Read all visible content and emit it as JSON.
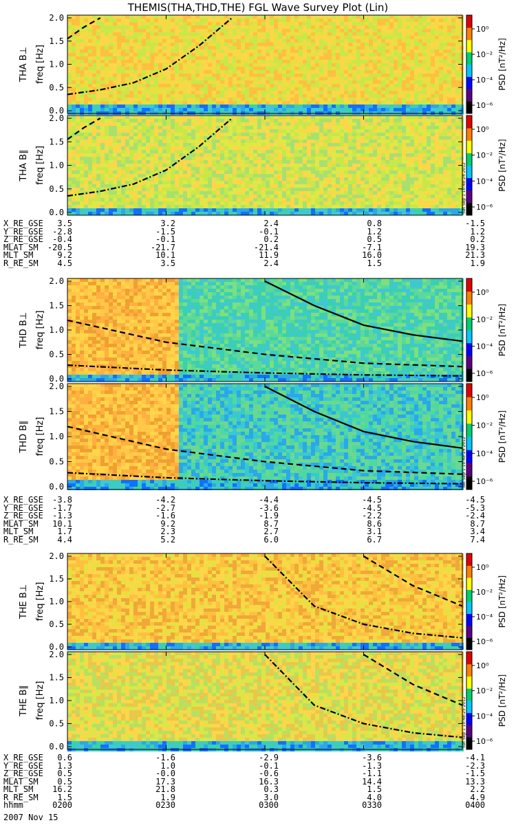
{
  "title": "THEMIS(THA,THD,THE) FGL Wave Survey Plot (Lin)",
  "colorbar": {
    "label": "PSD [nT²/Hz]",
    "tick_labels": [
      "10⁰",
      "10⁻²",
      "10⁻⁴",
      "10⁻⁶"
    ],
    "scale": "log",
    "colors": [
      "#000000",
      "#5b0080",
      "#0000ff",
      "#00c8ff",
      "#00d070",
      "#ffff00",
      "#ff8000",
      "#e00000"
    ]
  },
  "panels": [
    {
      "ylabel": "THA B⊥",
      "unit": "freq [Hz]",
      "stamp": ""
    },
    {
      "ylabel": "THA B∥",
      "unit": "freq [Hz]",
      "stamp": "Sat Sep 1 10:48:24 2012"
    },
    {
      "ylabel": "THD B⊥",
      "unit": "freq [Hz]",
      "stamp": ""
    },
    {
      "ylabel": "THD B∥",
      "unit": "freq [Hz]",
      "stamp": "Sat Sep 1 10:48:24 2012"
    },
    {
      "ylabel": "THE B⊥",
      "unit": "freq [Hz]",
      "stamp": ""
    },
    {
      "ylabel": "THE B∥",
      "unit": "freq [Hz]",
      "stamp": "Sat Sep 1 10:48:25 2012"
    }
  ],
  "chart_data": {
    "type": "heatmap",
    "x": [
      "0200",
      "0230",
      "0300",
      "0330",
      "0400"
    ],
    "ylim": [
      0,
      2.0
    ],
    "yticks": [
      "0.0",
      "0.5",
      "1.0",
      "1.5",
      "2.0"
    ],
    "zlim": [
      "1e-6",
      "1e1"
    ],
    "series": [
      {
        "name": "THA",
        "curves": [
          {
            "style": "dash-dot",
            "x": [
              "0200",
              "0210",
              "0220",
              "0230",
              "0240",
              "0250"
            ],
            "y": [
              0.35,
              0.45,
              0.6,
              0.9,
              1.4,
              2.0
            ]
          },
          {
            "style": "dashed",
            "x": [
              "0200",
              "0205",
              "0210"
            ],
            "y": [
              1.55,
              1.8,
              2.0
            ]
          }
        ]
      },
      {
        "name": "THD",
        "curves": [
          {
            "style": "solid",
            "x": [
              "0300",
              "0315",
              "0330",
              "0345",
              "0400"
            ],
            "y": [
              2.0,
              1.5,
              1.1,
              0.9,
              0.77
            ]
          },
          {
            "style": "dashed",
            "x": [
              "0200",
              "0230",
              "0300",
              "0330",
              "0400"
            ],
            "y": [
              1.2,
              0.75,
              0.5,
              0.32,
              0.25
            ]
          },
          {
            "style": "dash-dot",
            "x": [
              "0200",
              "0230",
              "0300",
              "0330",
              "0400"
            ],
            "y": [
              0.28,
              0.18,
              0.12,
              0.08,
              0.06
            ]
          }
        ]
      },
      {
        "name": "THE",
        "curves": [
          {
            "style": "dash-dot",
            "x": [
              "0300",
              "0315",
              "0330",
              "0345",
              "0400"
            ],
            "y": [
              2.0,
              0.9,
              0.5,
              0.3,
              0.2
            ]
          },
          {
            "style": "dashed",
            "x": [
              "0330",
              "0345",
              "0400"
            ],
            "y": [
              2.0,
              1.35,
              0.9
            ]
          }
        ]
      }
    ]
  },
  "ephemeris": [
    {
      "rows": [
        {
          "label": "X_RE_GSE",
          "values": [
            "3.5",
            "3.2",
            "2.4",
            "0.8",
            "-1.5"
          ]
        },
        {
          "label": "Y_RE_GSE",
          "values": [
            "-2.8",
            "-1.5",
            "-0.1",
            "1.2",
            "1.2"
          ]
        },
        {
          "label": "Z_RE_GSE",
          "values": [
            "-0.4",
            "-0.1",
            "0.2",
            "0.5",
            "0.2"
          ]
        },
        {
          "label": "MLAT_SM",
          "values": [
            "-20.5",
            "-21.7",
            "-21.4",
            "-7.1",
            "19.3"
          ]
        },
        {
          "label": "MLT_SM",
          "values": [
            "9.2",
            "10.1",
            "11.9",
            "16.0",
            "21.3"
          ]
        },
        {
          "label": "R_RE_SM",
          "values": [
            "4.5",
            "3.5",
            "2.4",
            "1.5",
            "1.9"
          ]
        }
      ]
    },
    {
      "rows": [
        {
          "label": "X_RE_GSE",
          "values": [
            "-3.8",
            "-4.2",
            "-4.4",
            "-4.5",
            "-4.5"
          ]
        },
        {
          "label": "Y_RE_GSE",
          "values": [
            "-1.7",
            "-2.7",
            "-3.6",
            "-4.5",
            "-5.3"
          ]
        },
        {
          "label": "Z_RE_GSE",
          "values": [
            "-1.3",
            "-1.6",
            "-1.9",
            "-2.2",
            "-2.4"
          ]
        },
        {
          "label": "MLAT_SM",
          "values": [
            "10.1",
            "9.2",
            "8.7",
            "8.6",
            "8.7"
          ]
        },
        {
          "label": "MLT_SM",
          "values": [
            "1.7",
            "2.3",
            "2.7",
            "3.1",
            "3.4"
          ]
        },
        {
          "label": "R_RE_SM",
          "values": [
            "4.4",
            "5.2",
            "6.0",
            "6.7",
            "7.4"
          ]
        }
      ]
    },
    {
      "rows": [
        {
          "label": "X_RE_GSE",
          "values": [
            "0.6",
            "-1.6",
            "-2.9",
            "-3.6",
            "-4.1"
          ]
        },
        {
          "label": "Y_RE_GSE",
          "values": [
            "1.3",
            "1.0",
            "-0.1",
            "-1.3",
            "-2.3"
          ]
        },
        {
          "label": "Z_RE_GSE",
          "values": [
            "0.5",
            "-0.0",
            "-0.6",
            "-1.1",
            "-1.5"
          ]
        },
        {
          "label": "MLAT_SM",
          "values": [
            "0.5",
            "17.3",
            "16.3",
            "14.4",
            "13.3"
          ]
        },
        {
          "label": "MLT_SM",
          "values": [
            "16.2",
            "21.8",
            "0.3",
            "1.5",
            "2.2"
          ]
        },
        {
          "label": "R_RE_SM",
          "values": [
            "1.5",
            "1.9",
            "3.0",
            "4.0",
            "4.9"
          ]
        },
        {
          "label": "hhmm",
          "values": [
            "0200",
            "0230",
            "0300",
            "0330",
            "0400"
          ]
        }
      ]
    }
  ],
  "date": "2007 Nov 15"
}
